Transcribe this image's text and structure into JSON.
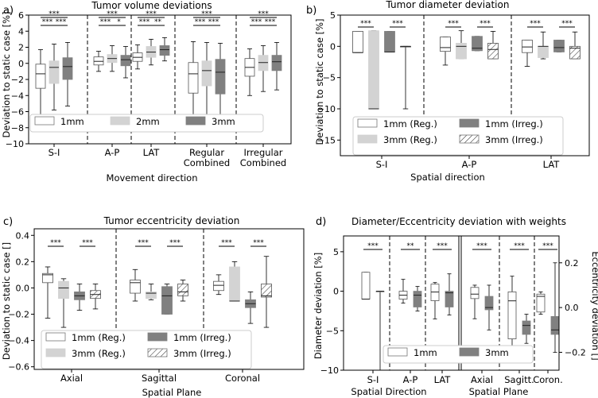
{
  "chart_data": [
    {
      "type": "boxplot",
      "panel_label": "a)",
      "title": "Tumor volume deviations",
      "xlabel": "Movement direction",
      "ylabel": "Deviation to static case [%]",
      "ylim": [
        -10,
        6
      ],
      "yticks": [
        6,
        4,
        2,
        0,
        -2,
        -4,
        -6,
        -8,
        -10
      ],
      "categories": [
        "S-I",
        "A-P",
        "LAT",
        "Regular\nCombined",
        "Irregular\nCombined"
      ],
      "series": [
        {
          "name": "1mm",
          "color": "#ffffff",
          "boxes": [
            {
              "whislo": -6.8,
              "q1": -3.1,
              "med": -1.3,
              "q3": -0.1,
              "whishi": 1.7
            },
            {
              "whislo": -1.0,
              "q1": -0.2,
              "med": 0.25,
              "q3": 0.8,
              "whishi": 1.5
            },
            {
              "whislo": -0.7,
              "q1": 0.25,
              "med": 0.75,
              "q3": 1.3,
              "whishi": 2.3
            },
            {
              "whislo": -7.5,
              "q1": -3.7,
              "med": -1.3,
              "q3": 0.1,
              "whishi": 2.7
            },
            {
              "whislo": -4.0,
              "q1": -1.6,
              "med": -0.5,
              "q3": 0.6,
              "whishi": 1.8
            }
          ]
        },
        {
          "name": "2mm",
          "color": "#d3d3d3",
          "boxes": [
            {
              "whislo": -5.8,
              "q1": -2.5,
              "med": -0.5,
              "q3": 0.3,
              "whishi": 2.4
            },
            {
              "whislo": -1.0,
              "q1": 0.1,
              "med": 0.6,
              "q3": 1.1,
              "whishi": 2.2
            },
            {
              "whislo": -0.2,
              "q1": 0.75,
              "med": 1.4,
              "q3": 2.1,
              "whishi": 3.0
            },
            {
              "whislo": -6.5,
              "q1": -2.8,
              "med": -0.9,
              "q3": 0.3,
              "whishi": 2.6
            },
            {
              "whislo": -3.5,
              "q1": -0.9,
              "med": 0.1,
              "q3": 1.0,
              "whishi": 2.2
            }
          ]
        },
        {
          "name": "3mm",
          "color": "#808080",
          "boxes": [
            {
              "whislo": -5.3,
              "q1": -2.0,
              "med": -0.4,
              "q3": 0.7,
              "whishi": 2.6
            },
            {
              "whislo": -1.8,
              "q1": -0.3,
              "med": 0.45,
              "q3": 1.0,
              "whishi": 2.1
            },
            {
              "whislo": 0.3,
              "q1": 1.0,
              "med": 1.7,
              "q3": 2.2,
              "whishi": 3.2
            },
            {
              "whislo": -8.0,
              "q1": -3.8,
              "med": -1.1,
              "q3": 0.5,
              "whishi": 2.5
            },
            {
              "whislo": -3.3,
              "q1": -0.9,
              "med": 0.2,
              "q3": 1.0,
              "whishi": 2.6
            }
          ]
        }
      ],
      "significance": [
        "***",
        "***",
        "***",
        "***",
        "***",
        "*",
        "***",
        "***",
        "**",
        "***",
        "***",
        "***",
        "***",
        "***",
        "***"
      ],
      "legend": [
        "1mm",
        "2mm",
        "3mm"
      ]
    },
    {
      "type": "boxplot",
      "panel_label": "b)",
      "title": "Tumor diameter deviation",
      "xlabel": "Spatial direction",
      "ylabel": "Deviation to static case [%]",
      "ylim": [
        -17.5,
        5
      ],
      "yticks": [
        5,
        0,
        -5,
        -10,
        -15
      ],
      "categories": [
        "S-I",
        "A-P",
        "LAT"
      ],
      "series": [
        {
          "name": "1mm (Reg.)",
          "color": "#ffffff",
          "hatch": false,
          "boxes": [
            {
              "whislo": -1.0,
              "q1": -1.0,
              "med": -1.0,
              "q3": 2.4,
              "whishi": 2.4
            },
            {
              "whislo": -3.0,
              "q1": -0.8,
              "med": -0.2,
              "q3": 1.5,
              "whishi": 1.5
            },
            {
              "whislo": -3.2,
              "q1": -1.0,
              "med": -0.1,
              "q3": 1.0,
              "whishi": 1.0
            }
          ]
        },
        {
          "name": "3mm (Reg.)",
          "color": "#d3d3d3",
          "hatch": false,
          "boxes": [
            {
              "whislo": -10.0,
              "q1": -10.0,
              "med": -10.0,
              "q3": 2.5,
              "whishi": 2.5
            },
            {
              "whislo": -2.0,
              "q1": -2.0,
              "med": 0.0,
              "q3": 0.5,
              "whishi": 2.5
            },
            {
              "whislo": -2.0,
              "q1": -1.8,
              "med": 0.0,
              "q3": 0.0,
              "whishi": 2.3
            }
          ]
        },
        {
          "name": "1mm (Irreg.)",
          "color": "#808080",
          "hatch": false,
          "boxes": [
            {
              "whislo": -0.9,
              "q1": -0.9,
              "med": -0.9,
              "q3": 2.4,
              "whishi": 2.4
            },
            {
              "whislo": -0.7,
              "q1": -0.7,
              "med": -0.3,
              "q3": 1.6,
              "whishi": 1.6
            },
            {
              "whislo": -0.9,
              "q1": -0.9,
              "med": -0.2,
              "q3": 1.0,
              "whishi": 1.0
            }
          ]
        },
        {
          "name": "3mm (Irreg.)",
          "color": "#ffffff",
          "hatch": true,
          "boxes": [
            {
              "whislo": -10.0,
              "q1": 0.0,
              "med": 0.0,
              "q3": 0.0,
              "whishi": 0.0
            },
            {
              "whislo": -2.0,
              "q1": -2.0,
              "med": -0.5,
              "q3": 0.5,
              "whishi": 2.4
            },
            {
              "whislo": -2.0,
              "q1": -2.0,
              "med": -0.3,
              "q3": 0.0,
              "whishi": 2.3
            }
          ]
        }
      ],
      "significance": [
        "***",
        "***",
        "***",
        "***",
        "***",
        "***"
      ],
      "legend": [
        "1mm (Reg.)",
        "3mm (Reg.)",
        "1mm (Irreg.)",
        "3mm (Irreg.)"
      ]
    },
    {
      "type": "boxplot",
      "panel_label": "c)",
      "title": "Tumor eccentricity deviation",
      "xlabel": "Spatial Plane",
      "ylabel": "Deviation to static case []",
      "ylim": [
        -0.62,
        0.45
      ],
      "yticks": [
        0.4,
        0.2,
        0.0,
        -0.2,
        -0.4,
        -0.6
      ],
      "yticklabels": [
        "0.4",
        "0.2",
        "0.0",
        "−0.2",
        "−0.4",
        "−0.6"
      ],
      "categories": [
        "Axial",
        "Sagittal",
        "Coronal"
      ],
      "series": [
        {
          "name": "1mm (Reg.)",
          "color": "#ffffff",
          "hatch": false,
          "boxes": [
            {
              "whislo": -0.23,
              "q1": 0.04,
              "med": 0.1,
              "q3": 0.11,
              "whishi": 0.16
            },
            {
              "whislo": -0.1,
              "q1": -0.04,
              "med": 0.04,
              "q3": 0.06,
              "whishi": 0.14
            },
            {
              "whislo": -0.05,
              "q1": -0.02,
              "med": 0.02,
              "q3": 0.05,
              "whishi": 0.1
            }
          ]
        },
        {
          "name": "3mm (Reg.)",
          "color": "#d3d3d3",
          "hatch": false,
          "boxes": [
            {
              "whislo": -0.3,
              "q1": -0.08,
              "med": 0.0,
              "q3": 0.05,
              "whishi": 0.07
            },
            {
              "whislo": -0.09,
              "q1": -0.08,
              "med": -0.04,
              "q3": -0.03,
              "whishi": 0.03
            },
            {
              "whislo": -0.1,
              "q1": -0.1,
              "med": -0.1,
              "q3": 0.16,
              "whishi": 0.2
            }
          ]
        },
        {
          "name": "1mm (Irreg.)",
          "color": "#808080",
          "hatch": false,
          "boxes": [
            {
              "whislo": -0.17,
              "q1": -0.09,
              "med": -0.06,
              "q3": -0.03,
              "whishi": 0.03
            },
            {
              "whislo": -0.2,
              "q1": -0.2,
              "med": -0.06,
              "q3": 0.01,
              "whishi": 0.03
            },
            {
              "whislo": -0.27,
              "q1": -0.15,
              "med": -0.12,
              "q3": -0.09,
              "whishi": -0.03
            }
          ]
        },
        {
          "name": "3mm (Irreg.)",
          "color": "#ffffff",
          "hatch": true,
          "boxes": [
            {
              "whislo": -0.16,
              "q1": -0.08,
              "med": -0.05,
              "q3": -0.02,
              "whishi": 0.03
            },
            {
              "whislo": -0.1,
              "q1": -0.06,
              "med": -0.03,
              "q3": 0.03,
              "whishi": 0.06
            },
            {
              "whislo": -0.3,
              "q1": -0.07,
              "med": -0.06,
              "q3": 0.03,
              "whishi": 0.24
            }
          ]
        }
      ],
      "significance": [
        "***",
        "***",
        "***",
        "***",
        "***",
        "***"
      ],
      "legend": [
        "1mm (Reg.)",
        "3mm (Reg.)",
        "1mm (Irreg.)",
        "3mm (Irreg.)"
      ]
    },
    {
      "type": "boxplot",
      "panel_label": "d)",
      "title": "Diameter/Eccentricity deviation with weights",
      "xlabel_left": "Spatial Direction",
      "xlabel_right": "Spatial Plane",
      "ylabel": "Diameter deviation [%]",
      "ylabel_right": "Eccentricity deviation []",
      "ylim": [
        -10,
        7
      ],
      "yticks": [
        5,
        0,
        -5,
        -10
      ],
      "yticklabels": [
        "5",
        "0",
        "−5",
        "−10"
      ],
      "ylim_right": [
        -0.28,
        0.32
      ],
      "yticks_right": [
        0.2,
        0.0,
        -0.2
      ],
      "yticklabels_right": [
        "0.2",
        "0.0",
        "−0.2"
      ],
      "categories": [
        "S-I",
        "A-P",
        "LAT",
        "Axial",
        "Sagitt.",
        "Coron."
      ],
      "axis_for_category": [
        "left",
        "left",
        "left",
        "right",
        "right",
        "right"
      ],
      "series": [
        {
          "name": "1mm",
          "color": "#ffffff",
          "boxes": [
            {
              "whislo": -1.0,
              "q1": -1.0,
              "med": -1.0,
              "q3": 2.4,
              "whishi": 2.4
            },
            {
              "whislo": -1.5,
              "q1": -1.0,
              "med": -0.5,
              "q3": 0.0,
              "whishi": 1.5
            },
            {
              "whislo": -3.5,
              "q1": -1.2,
              "med": -0.1,
              "q3": 0.9,
              "whishi": 1.1
            },
            {
              "whislo": -0.05,
              "q1": 0.04,
              "med": 0.06,
              "q3": 0.09,
              "whishi": 0.1
            },
            {
              "whislo": -0.24,
              "q1": -0.14,
              "med": 0.03,
              "q3": 0.07,
              "whishi": 0.14
            },
            {
              "whislo": -0.03,
              "q1": -0.02,
              "med": 0.05,
              "q3": 0.06,
              "whishi": 0.07
            }
          ]
        },
        {
          "name": "3mm",
          "color": "#808080",
          "boxes": [
            {
              "whislo": -10.0,
              "q1": 0.0,
              "med": 0.0,
              "q3": 0.0,
              "whishi": 0.0
            },
            {
              "whislo": -2.5,
              "q1": -2.0,
              "med": -0.5,
              "q3": 0.0,
              "whishi": 0.6
            },
            {
              "whislo": -3.0,
              "q1": -2.0,
              "med": -0.2,
              "q3": 0.0,
              "whishi": 2.2
            },
            {
              "whislo": -0.1,
              "q1": -0.01,
              "med": 0.0,
              "q3": 0.05,
              "whishi": 0.1
            },
            {
              "whislo": -0.16,
              "q1": -0.12,
              "med": -0.08,
              "q3": -0.06,
              "whishi": -0.03
            },
            {
              "whislo": -0.2,
              "q1": -0.12,
              "med": -0.1,
              "q3": -0.04,
              "whishi": 0.2
            }
          ]
        }
      ],
      "significance": [
        "***",
        "**",
        "***",
        "***",
        "***",
        "***"
      ],
      "legend": [
        "1mm",
        "3mm"
      ]
    }
  ]
}
